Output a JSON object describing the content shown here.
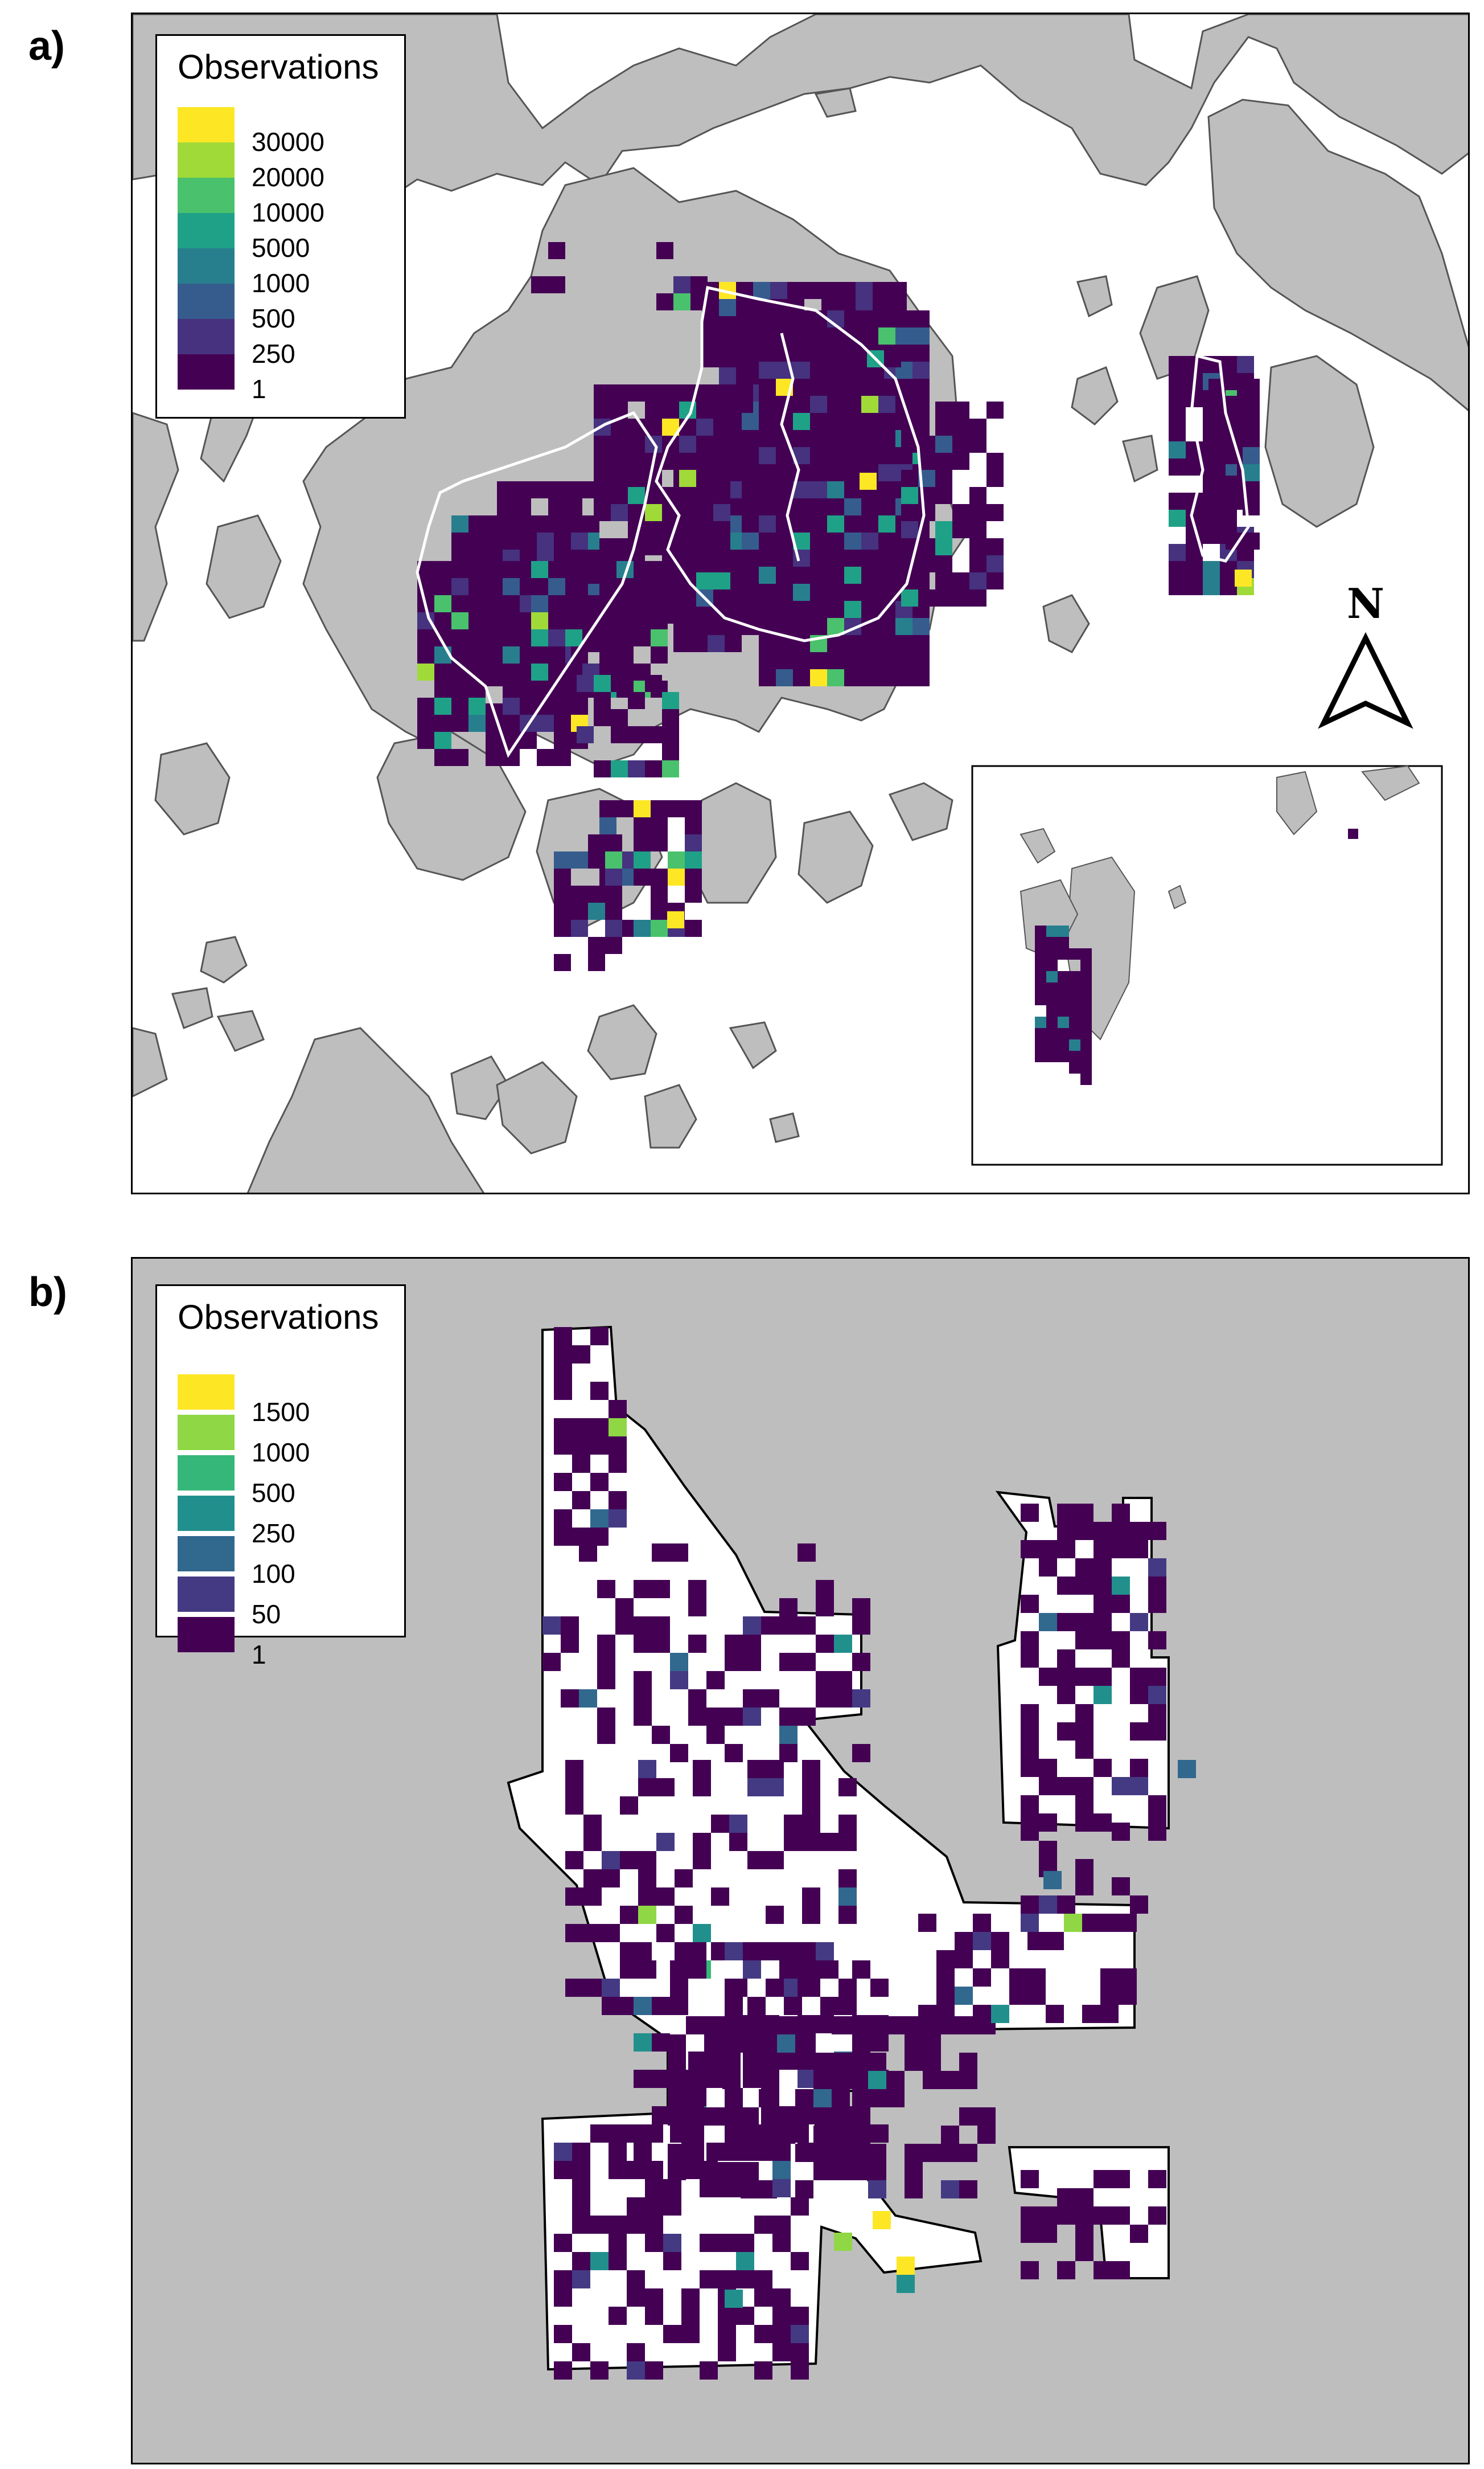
{
  "panel_a": {
    "label": "a)",
    "legend": {
      "title": "Observations",
      "items": [
        {
          "label": "30000",
          "color": "#fde725"
        },
        {
          "label": "20000",
          "color": "#a0da39"
        },
        {
          "label": "10000",
          "color": "#4ac16d"
        },
        {
          "label": "5000",
          "color": "#1fa187"
        },
        {
          "label": "1000",
          "color": "#277f8e"
        },
        {
          "label": "500",
          "color": "#365c8d"
        },
        {
          "label": "250",
          "color": "#46327e"
        },
        {
          "label": "1",
          "color": "#440154"
        }
      ]
    },
    "north_arrow": "N"
  },
  "panel_b": {
    "label": "b)",
    "legend": {
      "title": "Observations",
      "items": [
        {
          "label": "1500",
          "color": "#fde725"
        },
        {
          "label": "1000",
          "color": "#8fd744"
        },
        {
          "label": "500",
          "color": "#35b779"
        },
        {
          "label": "250",
          "color": "#21908d"
        },
        {
          "label": "100",
          "color": "#31688e"
        },
        {
          "label": "50",
          "color": "#443a83"
        },
        {
          "label": "1",
          "color": "#440154"
        }
      ]
    }
  },
  "colors": {
    "land": "#bebebe",
    "water": "#ffffff",
    "park_outline": "#ffffff"
  }
}
